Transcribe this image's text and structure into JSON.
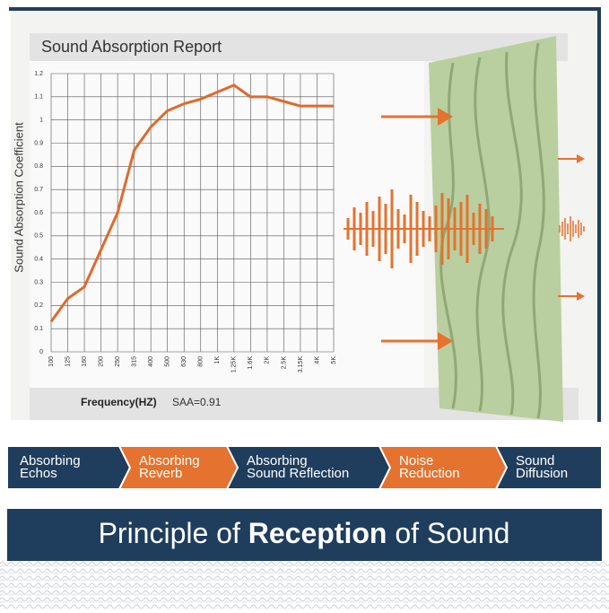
{
  "chart_data": {
    "type": "line",
    "title": "Sound Absorption Report",
    "y_label": "Sound Absorption Coefficient",
    "x_label": "Frequency(HZ)",
    "annotation": "SAA=0.91",
    "categories": [
      "100",
      "125",
      "160",
      "200",
      "250",
      "315",
      "400",
      "500",
      "630",
      "800",
      "1K",
      "1.25K",
      "1.6K",
      "2K",
      "2.5K",
      "3.15K",
      "4K",
      "5K"
    ],
    "series": [
      {
        "name": "Sound Absorption Coefficient",
        "color": "#e06a2c",
        "values": [
          0.13,
          0.23,
          0.28,
          0.44,
          0.6,
          0.87,
          0.97,
          1.04,
          1.07,
          1.09,
          1.12,
          1.15,
          1.1,
          1.1,
          1.08,
          1.06,
          1.06,
          1.06
        ]
      }
    ],
    "ylim": [
      0,
      1.2
    ],
    "yticks": [
      0,
      0.1,
      0.2,
      0.3,
      0.4,
      0.5,
      0.6,
      0.7,
      0.8,
      0.9,
      1,
      1.1,
      1.2
    ],
    "grid": true
  },
  "features": [
    {
      "lines": [
        "Absorbing",
        "Echos"
      ],
      "color": "#1f3d5c"
    },
    {
      "lines": [
        "Absorbing",
        "Reverb"
      ],
      "color": "#e5722e"
    },
    {
      "lines": [
        "Absorbing",
        "Sound Reflection"
      ],
      "color": "#1f3d5c"
    },
    {
      "lines": [
        "Noise",
        "Reduction"
      ],
      "color": "#e5722e"
    },
    {
      "lines": [
        "Sound",
        "Diffusion"
      ],
      "color": "#1f3d5c"
    }
  ],
  "banner": {
    "parts": [
      "Principle of ",
      "Reception",
      " of Sound"
    ]
  }
}
